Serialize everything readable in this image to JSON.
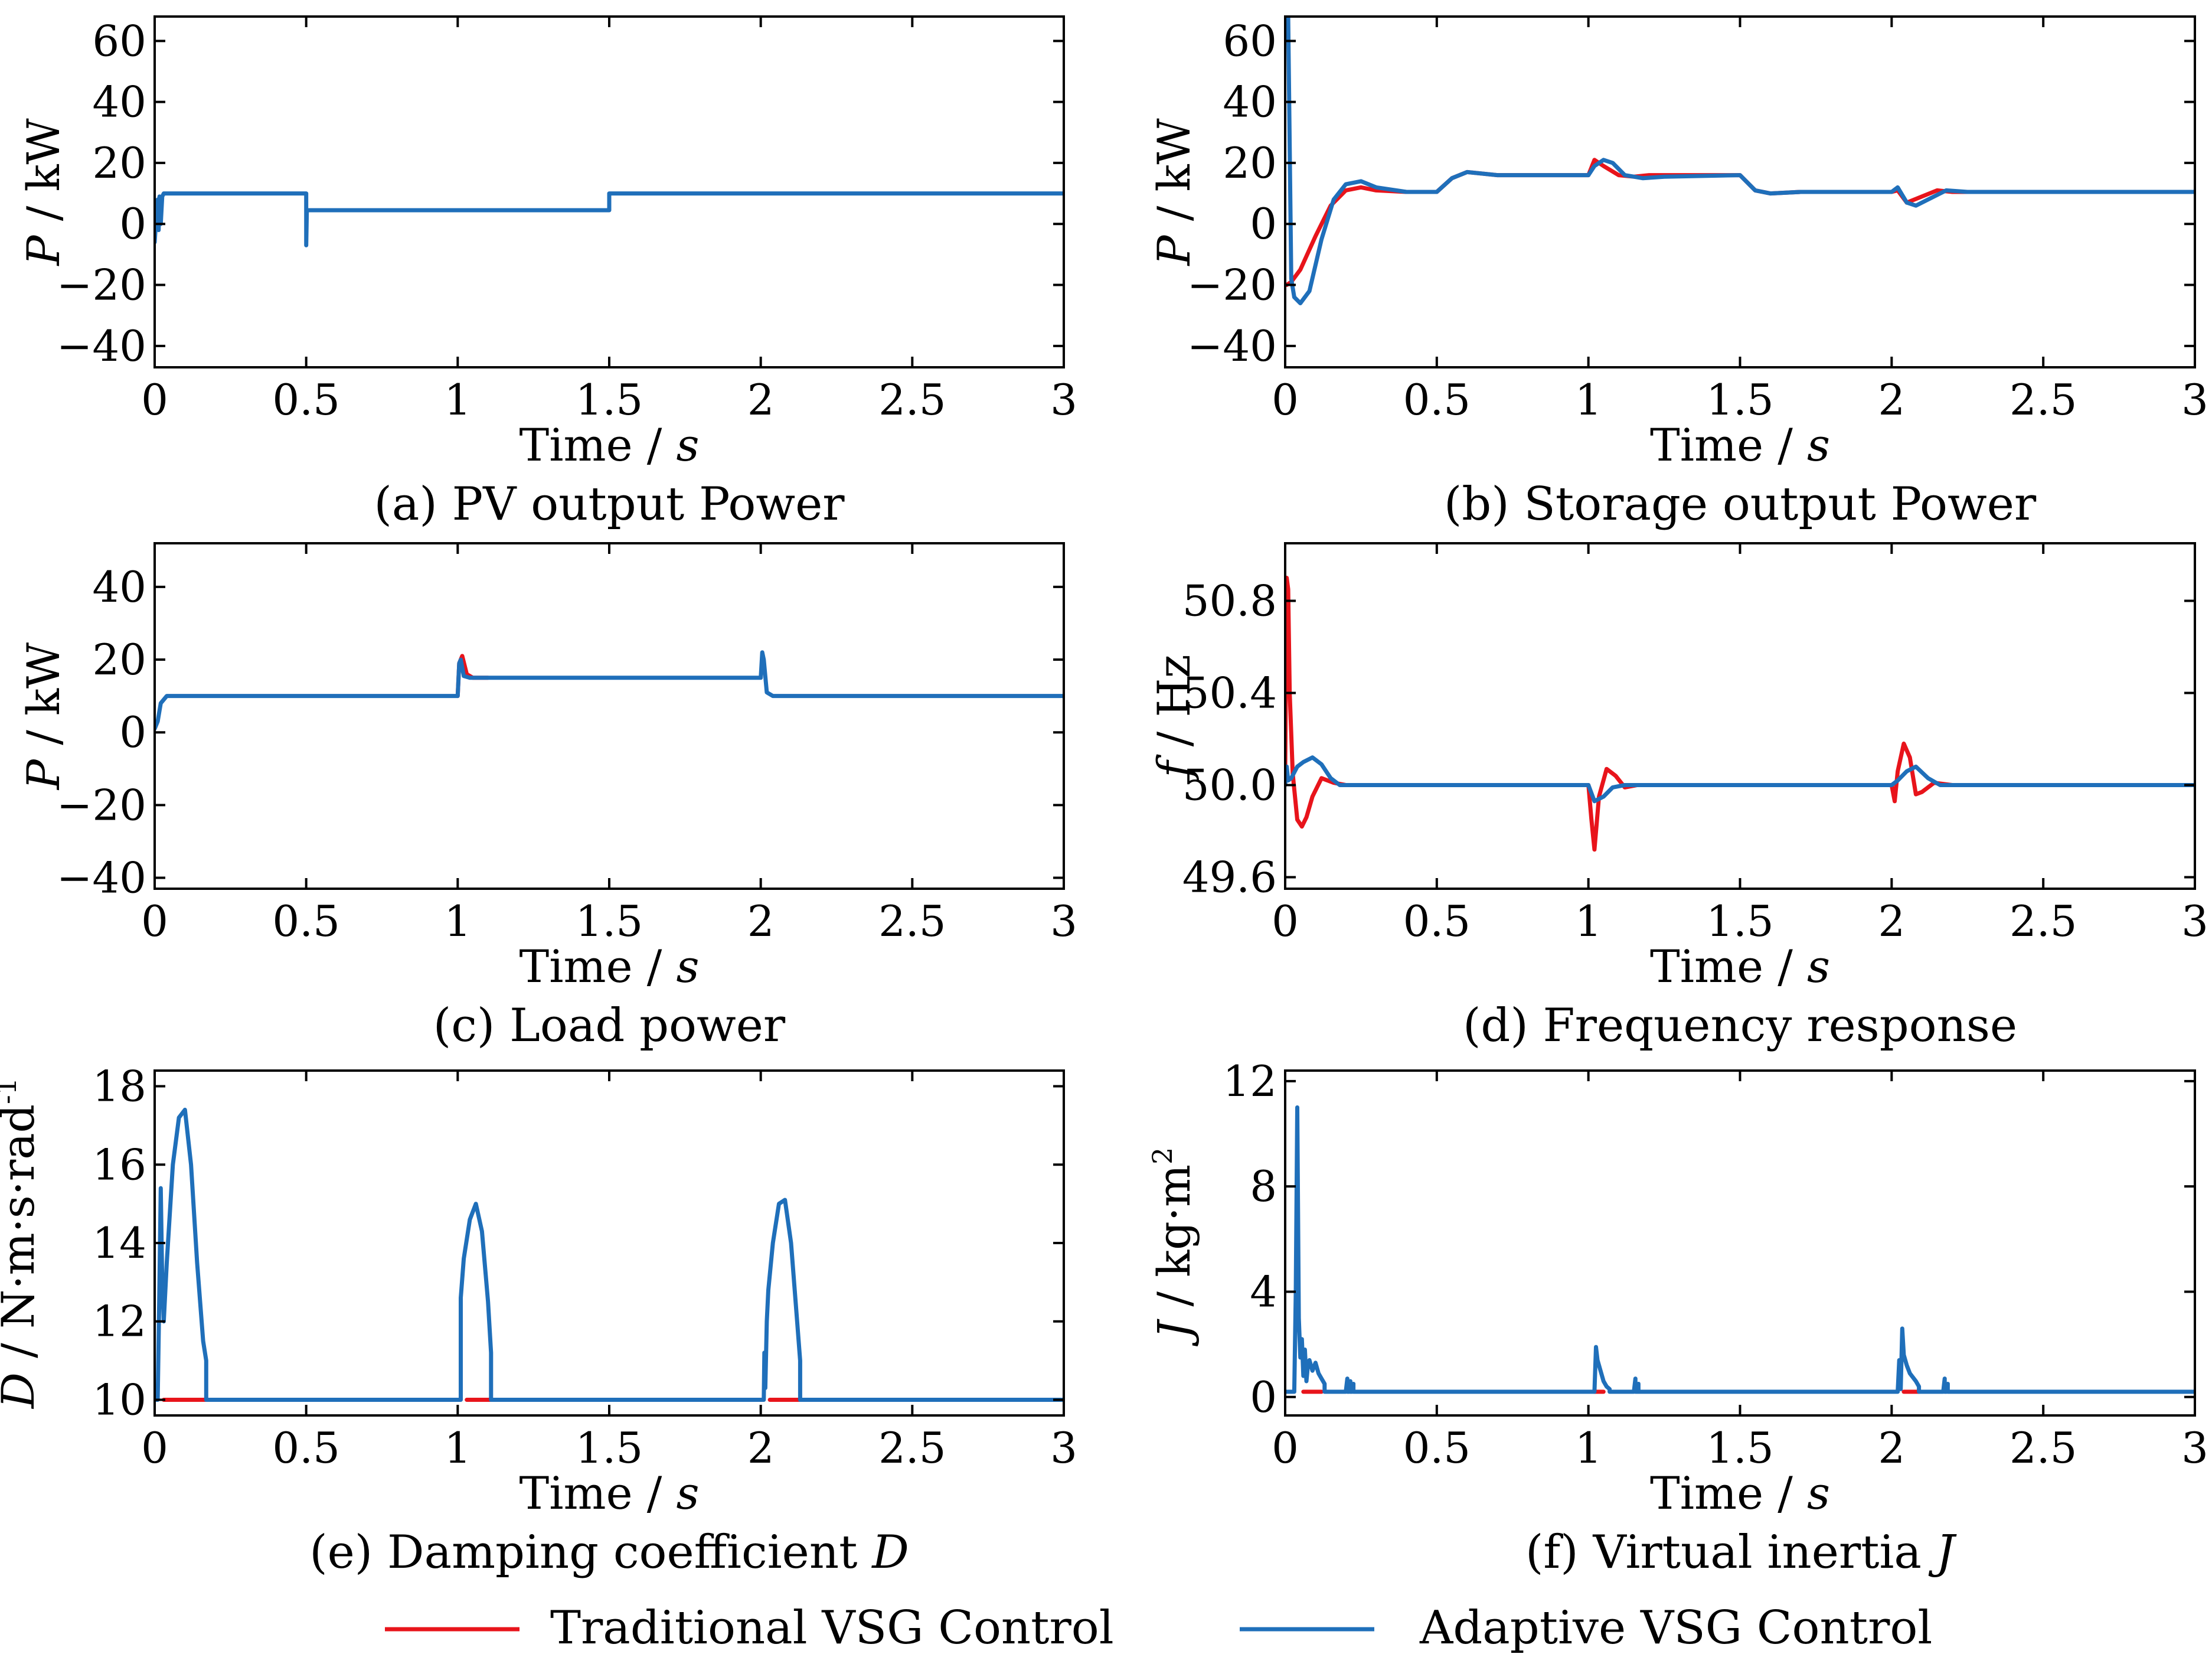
{
  "colors": {
    "traditional": "#e8141b",
    "adaptive": "#1f6fba",
    "axis": "#000000"
  },
  "legend": {
    "traditional": "Traditional VSG Control",
    "adaptive": "Adaptive VSG Control"
  },
  "chart_data": [
    {
      "id": "a",
      "type": "line",
      "caption": "(a) PV output Power",
      "xlabel": "Time / s",
      "ylabel": "P / kW",
      "xlim": [
        0,
        3
      ],
      "ylim": [
        -47,
        68
      ],
      "xticks": [
        0,
        0.5,
        1,
        1.5,
        2,
        2.5,
        3
      ],
      "xticklabels": [
        "0",
        "0.5",
        "1",
        "1.5",
        "2",
        "2.5",
        "3"
      ],
      "yticks": [
        -40,
        -20,
        0,
        20,
        40,
        60
      ],
      "yticklabels": [
        "−40",
        "−20",
        "0",
        "20",
        "40",
        "60"
      ],
      "series": [
        {
          "name": "Adaptive VSG Control",
          "color": "adaptive",
          "x": [
            0,
            0.005,
            0.01,
            0.013,
            0.016,
            0.02,
            0.025,
            0.03,
            0.04,
            0.05,
            0.5,
            0.5,
            0.502,
            0.505,
            0.51,
            1.5,
            1.5,
            1.51,
            3
          ],
          "y": [
            -6,
            2,
            8,
            -2,
            9,
            0,
            9,
            10,
            10,
            10,
            10,
            -7,
            4,
            4.5,
            4.5,
            4.5,
            10,
            10,
            10
          ]
        }
      ]
    },
    {
      "id": "b",
      "type": "line",
      "caption": "(b)  Storage output Power",
      "xlabel": "Time / s",
      "ylabel": "P / kW",
      "xlim": [
        0,
        3
      ],
      "ylim": [
        -47,
        68
      ],
      "xticks": [
        0,
        0.5,
        1,
        1.5,
        2,
        2.5,
        3
      ],
      "xticklabels": [
        "0",
        "0.5",
        "1",
        "1.5",
        "2",
        "2.5",
        "3"
      ],
      "yticks": [
        -40,
        -20,
        0,
        20,
        40,
        60
      ],
      "yticklabels": [
        "−40",
        "−20",
        "0",
        "20",
        "40",
        "60"
      ],
      "series": [
        {
          "name": "Traditional VSG Control",
          "color": "traditional",
          "x": [
            0.005,
            0.02,
            0.05,
            0.1,
            0.15,
            0.2,
            0.25,
            0.3,
            0.4,
            0.5,
            0.55,
            0.6,
            0.7,
            1.0,
            1.02,
            1.05,
            1.1,
            1.15,
            1.2,
            1.3,
            1.5,
            1.55,
            1.6,
            1.7,
            2.0,
            2.02,
            2.05,
            2.1,
            2.15,
            2.2,
            2.3,
            3
          ],
          "y": [
            -20,
            -19,
            -15,
            -4,
            6,
            11,
            12,
            11,
            10.5,
            10.5,
            15,
            17,
            16,
            16,
            21,
            19,
            16,
            15.5,
            16,
            16,
            16,
            11,
            10,
            10.5,
            10.5,
            11,
            7,
            9,
            11,
            10.5,
            10.5,
            10.5
          ]
        },
        {
          "name": "Adaptive VSG Control",
          "color": "adaptive",
          "x": [
            0,
            0.01,
            0.02,
            0.03,
            0.05,
            0.08,
            0.12,
            0.16,
            0.2,
            0.25,
            0.3,
            0.4,
            0.5,
            0.55,
            0.6,
            0.7,
            1.0,
            1.02,
            1.05,
            1.08,
            1.12,
            1.18,
            1.25,
            1.5,
            1.55,
            1.6,
            1.7,
            2.0,
            2.02,
            2.05,
            2.08,
            2.12,
            2.18,
            2.25,
            3
          ],
          "y": [
            68,
            68,
            -18,
            -24,
            -26,
            -22,
            -5,
            8,
            13,
            14,
            12,
            10.5,
            10.5,
            15,
            17,
            16,
            16,
            19,
            21,
            20,
            16,
            15,
            15.5,
            16,
            11,
            10,
            10.5,
            10.5,
            12,
            7,
            6,
            8,
            11,
            10.5,
            10.5
          ]
        }
      ]
    },
    {
      "id": "c",
      "type": "line",
      "caption": "(c) Load power",
      "xlabel": "Time / s",
      "ylabel": "P / kW",
      "xlim": [
        0,
        3
      ],
      "ylim": [
        -43,
        52
      ],
      "xticks": [
        0,
        0.5,
        1,
        1.5,
        2,
        2.5,
        3
      ],
      "xticklabels": [
        "0",
        "0.5",
        "1",
        "1.5",
        "2",
        "2.5",
        "3"
      ],
      "yticks": [
        -40,
        -20,
        0,
        20,
        40
      ],
      "yticklabels": [
        "−40",
        "−20",
        "0",
        "20",
        "40"
      ],
      "series": [
        {
          "name": "Traditional VSG Control",
          "color": "traditional",
          "x": [
            1.0,
            1.005,
            1.015,
            1.03,
            1.05,
            1.1
          ],
          "y": [
            10,
            19,
            21,
            16,
            15,
            15
          ]
        },
        {
          "name": "Adaptive VSG Control",
          "color": "adaptive",
          "x": [
            0,
            0.01,
            0.02,
            0.04,
            0.06,
            0.1,
            1.0,
            1.005,
            1.01,
            1.02,
            1.04,
            1.1,
            2.0,
            2.005,
            2.01,
            2.02,
            2.04,
            2.1,
            3
          ],
          "y": [
            1,
            3,
            8,
            10,
            10,
            10,
            10,
            19,
            20,
            15.5,
            15,
            15,
            15,
            22,
            20,
            11,
            10,
            10,
            10
          ]
        }
      ]
    },
    {
      "id": "d",
      "type": "line",
      "caption": "(d) Frequency response",
      "xlabel": "Time / s",
      "ylabel": "f / Hz",
      "xlim": [
        0,
        3
      ],
      "ylim": [
        49.55,
        51.05
      ],
      "xticks": [
        0,
        0.5,
        1,
        1.5,
        2,
        2.5,
        3
      ],
      "xticklabels": [
        "0",
        "0.5",
        "1",
        "1.5",
        "2",
        "2.5",
        "3"
      ],
      "yticks": [
        49.6,
        50.0,
        50.4,
        50.8
      ],
      "yticklabels": [
        "49.6",
        "50.0",
        "50.4",
        "50.8"
      ],
      "series": [
        {
          "name": "Traditional VSG Control",
          "color": "traditional",
          "x": [
            0,
            0.005,
            0.01,
            0.015,
            0.025,
            0.04,
            0.055,
            0.07,
            0.09,
            0.12,
            0.16,
            0.2,
            0.25,
            1.0,
            1.01,
            1.02,
            1.035,
            1.06,
            1.09,
            1.12,
            1.16,
            1.22,
            2.0,
            2.01,
            2.02,
            2.04,
            2.06,
            2.08,
            2.1,
            2.14,
            2.2,
            3
          ],
          "y": [
            50.05,
            50.9,
            50.85,
            50.4,
            50.05,
            49.85,
            49.82,
            49.86,
            49.95,
            50.03,
            50.01,
            50.0,
            50.0,
            50.0,
            49.85,
            49.72,
            49.95,
            50.07,
            50.04,
            49.99,
            50.0,
            50.0,
            50.0,
            49.93,
            50.06,
            50.18,
            50.12,
            49.96,
            49.97,
            50.01,
            50.0,
            50.0
          ]
        },
        {
          "name": "Adaptive VSG Control",
          "color": "adaptive",
          "x": [
            0,
            0.005,
            0.01,
            0.02,
            0.04,
            0.06,
            0.09,
            0.12,
            0.15,
            0.18,
            0.22,
            0.3,
            1.0,
            1.02,
            1.05,
            1.08,
            1.12,
            1.2,
            2.0,
            2.02,
            2.05,
            2.08,
            2.12,
            2.16,
            2.22,
            3
          ],
          "y": [
            50.0,
            50.08,
            50.02,
            50.03,
            50.08,
            50.1,
            50.12,
            50.09,
            50.03,
            50.0,
            50.0,
            50.0,
            50.0,
            49.93,
            49.95,
            49.99,
            50.0,
            50.0,
            50.0,
            50.02,
            50.06,
            50.08,
            50.03,
            50.0,
            50.0,
            50.0
          ]
        }
      ]
    },
    {
      "id": "e",
      "type": "line",
      "caption": "(e) Damping coefficient D",
      "xlabel": "Time / s",
      "ylabel": "D / N·m·s·rad-1",
      "xlim": [
        0,
        3
      ],
      "ylim": [
        9.6,
        18.4
      ],
      "xticks": [
        0,
        0.5,
        1,
        1.5,
        2,
        2.5,
        3
      ],
      "xticklabels": [
        "0",
        "0.5",
        "1",
        "1.5",
        "2",
        "2.5",
        "3"
      ],
      "yticks": [
        10,
        12,
        14,
        16,
        18
      ],
      "yticklabels": [
        "10",
        "12",
        "14",
        "16",
        "18"
      ],
      "series": [
        {
          "name": "Traditional VSG Control",
          "color": "traditional",
          "x": [
            0.03,
            0.17,
            null,
            1.03,
            1.11,
            null,
            2.03,
            2.13
          ],
          "y": [
            10,
            10,
            null,
            10,
            10,
            null,
            10,
            10
          ]
        },
        {
          "name": "Adaptive VSG Control",
          "color": "adaptive",
          "x": [
            0,
            0.01,
            0.015,
            0.02,
            0.025,
            0.03,
            0.04,
            0.06,
            0.08,
            0.1,
            0.12,
            0.14,
            0.16,
            0.17,
            0.17,
            0.5,
            1.0,
            1.01,
            1.01,
            1.02,
            1.04,
            1.06,
            1.08,
            1.1,
            1.11,
            1.11,
            1.5,
            2.0,
            2.01,
            2.012,
            2.015,
            2.02,
            2.025,
            2.04,
            2.06,
            2.08,
            2.1,
            2.12,
            2.13,
            2.13,
            3
          ],
          "y": [
            10,
            10,
            12.5,
            15.4,
            13,
            12,
            13.5,
            16,
            17.2,
            17.4,
            16,
            13.5,
            11.5,
            11,
            10,
            10,
            10,
            10,
            12.6,
            13.6,
            14.6,
            15,
            14.3,
            12.5,
            11.2,
            10,
            10,
            10,
            10,
            11.2,
            10.3,
            12,
            12.8,
            14,
            15,
            15.1,
            14,
            12,
            11,
            10,
            10
          ]
        }
      ]
    },
    {
      "id": "f",
      "type": "line",
      "caption": "(f) Virtual inertia J",
      "xlabel": "Time / s",
      "ylabel": "J / kg·m2",
      "xlim": [
        0,
        3
      ],
      "ylim": [
        -0.7,
        12.4
      ],
      "xticks": [
        0,
        0.5,
        1,
        1.5,
        2,
        2.5,
        3
      ],
      "xticklabels": [
        "0",
        "0.5",
        "1",
        "1.5",
        "2",
        "2.5",
        "3"
      ],
      "yticks": [
        0,
        4,
        8,
        12
      ],
      "yticklabels": [
        "0",
        "4",
        "8",
        "12"
      ],
      "series": [
        {
          "name": "Traditional VSG Control",
          "color": "traditional",
          "x": [
            0.06,
            0.12,
            null,
            1.02,
            1.05,
            null,
            2.04,
            2.09
          ],
          "y": [
            0.2,
            0.2,
            null,
            0.2,
            0.2,
            null,
            0.2,
            0.2
          ]
        },
        {
          "name": "Adaptive VSG Control",
          "color": "adaptive",
          "x": [
            0,
            0.03,
            0.035,
            0.04,
            0.045,
            0.05,
            0.055,
            0.06,
            0.065,
            0.07,
            0.075,
            0.08,
            0.09,
            0.1,
            0.11,
            0.12,
            0.13,
            0.13,
            0.2,
            0.205,
            0.205,
            0.21,
            0.215,
            0.215,
            0.22,
            0.225,
            0.225,
            1.0,
            1.02,
            1.025,
            1.03,
            1.04,
            1.05,
            1.06,
            1.07,
            1.07,
            1.15,
            1.155,
            1.155,
            1.16,
            1.165,
            1.165,
            2.0,
            2.02,
            2.025,
            2.03,
            2.035,
            2.04,
            2.05,
            2.06,
            2.08,
            2.09,
            2.09,
            2.17,
            2.175,
            2.175,
            2.18,
            2.185,
            2.185,
            3
          ],
          "y": [
            0.2,
            0.2,
            4,
            11,
            3,
            1.5,
            2.2,
            0.8,
            1.8,
            0.6,
            1.2,
            1.4,
            1,
            1.3,
            0.9,
            0.7,
            0.5,
            0.2,
            0.2,
            0.7,
            0.2,
            0.2,
            0.6,
            0.2,
            0.2,
            0.5,
            0.2,
            0.2,
            0.2,
            1.9,
            1.4,
            1,
            0.6,
            0.4,
            0.3,
            0.2,
            0.2,
            0.7,
            0.2,
            0.2,
            0.5,
            0.2,
            0.2,
            0.2,
            1.4,
            0.3,
            2.6,
            1.6,
            1.2,
            0.9,
            0.6,
            0.4,
            0.2,
            0.2,
            0.7,
            0.2,
            0.2,
            0.5,
            0.2,
            0.2
          ]
        }
      ]
    }
  ]
}
